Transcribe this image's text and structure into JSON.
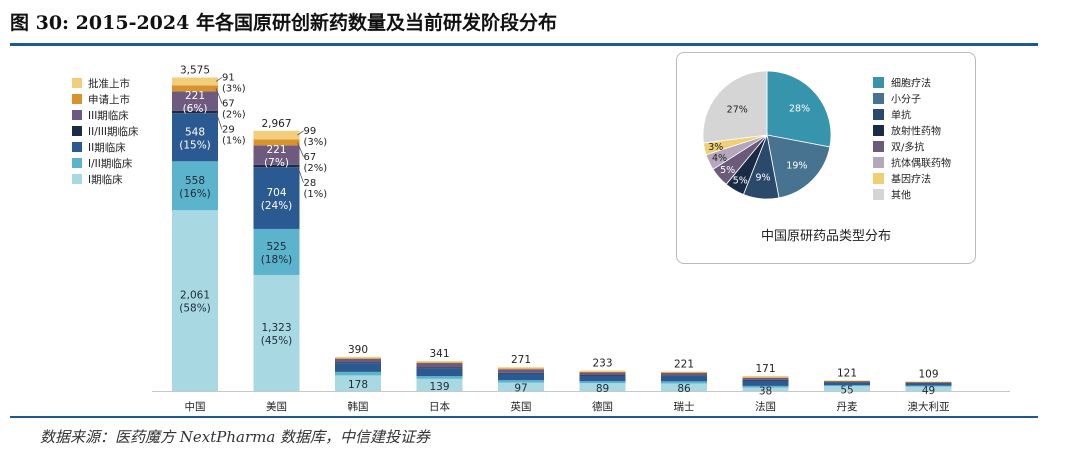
{
  "figure": {
    "title": "图 30: 2015-2024 年各国原研创新药数量及当前研发阶段分布",
    "source": "数据来源：医药魔方 NextPharma 数据库，中信建投证券"
  },
  "colors": {
    "rule": "#1f5a8f",
    "stages": [
      "#f2cd7c",
      "#d9932d",
      "#6e5a7f",
      "#1b2b45",
      "#2a5a91",
      "#5cb3cc",
      "#a8d9e3"
    ],
    "pie": [
      "#3694ad",
      "#487390",
      "#2b4a6b",
      "#1c2b45",
      "#6b5a7a",
      "#b4a7bc",
      "#efcf73",
      "#d5d5d5"
    ]
  },
  "chart_data": [
    {
      "type": "bar",
      "stacked": true,
      "title": "",
      "xlabel": "",
      "ylabel": "",
      "categories": [
        "中国",
        "美国",
        "韩国",
        "日本",
        "英国",
        "德国",
        "瑞士",
        "法国",
        "丹麦",
        "澳大利亚"
      ],
      "totals": [
        3575,
        2967,
        390,
        341,
        271,
        233,
        221,
        171,
        121,
        109
      ],
      "total_labels": [
        "3,575",
        "2,967",
        "390",
        "341",
        "271",
        "233",
        "221",
        "171",
        "121",
        "109"
      ],
      "series": [
        {
          "name": "I期临床",
          "values": [
            2061,
            1323,
            178,
            139,
            97,
            89,
            86,
            38,
            55,
            49
          ],
          "labels": [
            [
              "2,061",
              "(58%)"
            ],
            [
              "1,323",
              "(45%)"
            ],
            [
              "178"
            ],
            [
              "139"
            ],
            [
              "97"
            ],
            [
              "89"
            ],
            [
              "86"
            ],
            [
              "38"
            ],
            [
              "55"
            ],
            [
              "49"
            ]
          ]
        },
        {
          "name": "I/II期临床",
          "values": [
            558,
            525,
            40,
            30,
            26,
            22,
            24,
            20,
            11,
            11
          ],
          "labels": [
            [
              "558",
              "(16%)"
            ],
            [
              "525",
              "(18%)"
            ],
            [],
            [],
            [],
            [],
            [],
            [],
            [],
            []
          ]
        },
        {
          "name": "II期临床",
          "values": [
            548,
            704,
            100,
            90,
            75,
            60,
            63,
            60,
            30,
            28
          ],
          "labels": [
            [
              "548",
              "(15%)"
            ],
            [
              "704",
              "(24%)"
            ],
            [],
            [],
            [],
            [],
            [],
            [],
            [],
            []
          ]
        },
        {
          "name": "II/III期临床",
          "values": [
            29,
            28,
            10,
            10,
            10,
            10,
            8,
            8,
            5,
            5
          ],
          "labels": [
            [
              "29",
              "(1%)"
            ],
            [
              "28",
              "(1%)"
            ],
            [],
            [],
            [],
            [],
            [],
            [],
            [],
            []
          ]
        },
        {
          "name": "III期临床",
          "values": [
            221,
            221,
            40,
            50,
            40,
            30,
            25,
            25,
            12,
            10
          ],
          "labels": [
            [
              "221",
              "(6%)"
            ],
            [
              "221",
              "(7%)"
            ],
            [],
            [],
            [],
            [],
            [],
            [],
            [],
            []
          ]
        },
        {
          "name": "申请上市",
          "values": [
            67,
            67,
            7,
            7,
            8,
            8,
            5,
            6,
            3,
            2
          ],
          "labels": [
            [
              "67",
              "(2%)"
            ],
            [
              "67",
              "(2%)"
            ],
            [],
            [],
            [],
            [],
            [],
            [],
            [],
            []
          ]
        },
        {
          "name": "批准上市",
          "values": [
            91,
            99,
            15,
            15,
            15,
            14,
            10,
            14,
            5,
            4
          ],
          "labels": [
            [
              "91",
              "(3%)"
            ],
            [
              "99",
              "(3%)"
            ],
            [],
            [],
            [],
            [],
            [],
            [],
            [],
            []
          ]
        }
      ],
      "legend": {
        "placement": "top-left",
        "order": [
          "批准上市",
          "申请上市",
          "III期临床",
          "II/III期临床",
          "II期临床",
          "I/II期临床",
          "I期临床"
        ]
      },
      "grid": false
    },
    {
      "type": "pie",
      "title": "中国原研药品类型分布",
      "labels": [
        "细胞疗法",
        "小分子",
        "单抗",
        "放射性药物",
        "双/多抗",
        "抗体偶联药物",
        "基因疗法",
        "其他"
      ],
      "values": [
        28,
        19,
        9,
        5,
        5,
        4,
        3,
        27
      ],
      "value_labels": [
        "28%",
        "19%",
        "9%",
        "5%",
        "5%",
        "4%",
        "3%",
        "27%"
      ],
      "legend": {
        "placement": "right"
      }
    }
  ]
}
